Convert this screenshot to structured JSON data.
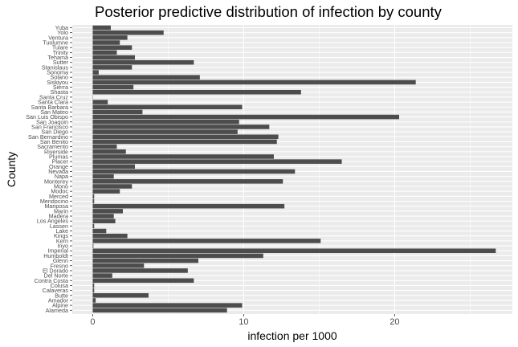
{
  "chart_data": {
    "type": "bar",
    "orientation": "horizontal",
    "title": "Posterior predictive distribution of infection by county",
    "xlabel": "infection per 1000",
    "ylabel": "County",
    "xlim": [
      -1.35,
      27.8
    ],
    "xticks": [
      0,
      10,
      20
    ],
    "grid": true,
    "categories": [
      "Yuba",
      "Yolo",
      "Ventura",
      "Tuolumne",
      "Tulare",
      "Trinity",
      "Tehama",
      "Sutter",
      "Stanislaus",
      "Sonoma",
      "Solano",
      "Siskiyou",
      "Sierra",
      "Shasta",
      "Santa Cruz",
      "Santa Clara",
      "Santa Barbara",
      "San Mateo",
      "San Luis Obispo",
      "San Joaquin",
      "San Francisco",
      "San Diego",
      "San Bernardino",
      "San Benito",
      "Sacramento",
      "Riverside",
      "Plumas",
      "Placer",
      "Orange",
      "Nevada",
      "Napa",
      "Monterey",
      "Mono",
      "Modoc",
      "Merced",
      "Mendocino",
      "Mariposa",
      "Marin",
      "Madera",
      "Los Angeles",
      "Lassen",
      "Lake",
      "Kings",
      "Kern",
      "Inyo",
      "Imperial",
      "Humboldt",
      "Glenn",
      "Fresno",
      "El Dorado",
      "Del Norte",
      "Contra Costa",
      "Colusa",
      "Calaveras",
      "Butte",
      "Amador",
      "Alpine",
      "Alameda"
    ],
    "values": [
      1.2,
      4.7,
      2.3,
      1.8,
      2.6,
      1.6,
      2.8,
      6.7,
      2.6,
      0.4,
      7.1,
      21.4,
      2.7,
      13.8,
      0,
      1.0,
      9.9,
      3.3,
      20.3,
      9.7,
      11.7,
      9.6,
      12.3,
      12.2,
      1.6,
      2.2,
      12.0,
      16.5,
      2.8,
      13.4,
      1.4,
      12.6,
      2.6,
      1.8,
      0.1,
      0.1,
      12.7,
      2.0,
      1.4,
      1.5,
      0.1,
      0.9,
      2.3,
      15.1,
      0.05,
      26.7,
      11.3,
      7.0,
      3.4,
      6.3,
      1.3,
      6.7,
      0.1,
      0.1,
      3.7,
      0.2,
      9.9,
      8.9
    ],
    "bar_color": "#4d4d4d",
    "panel_color": "#ebebeb",
    "gridline_color": "#ffffff"
  }
}
